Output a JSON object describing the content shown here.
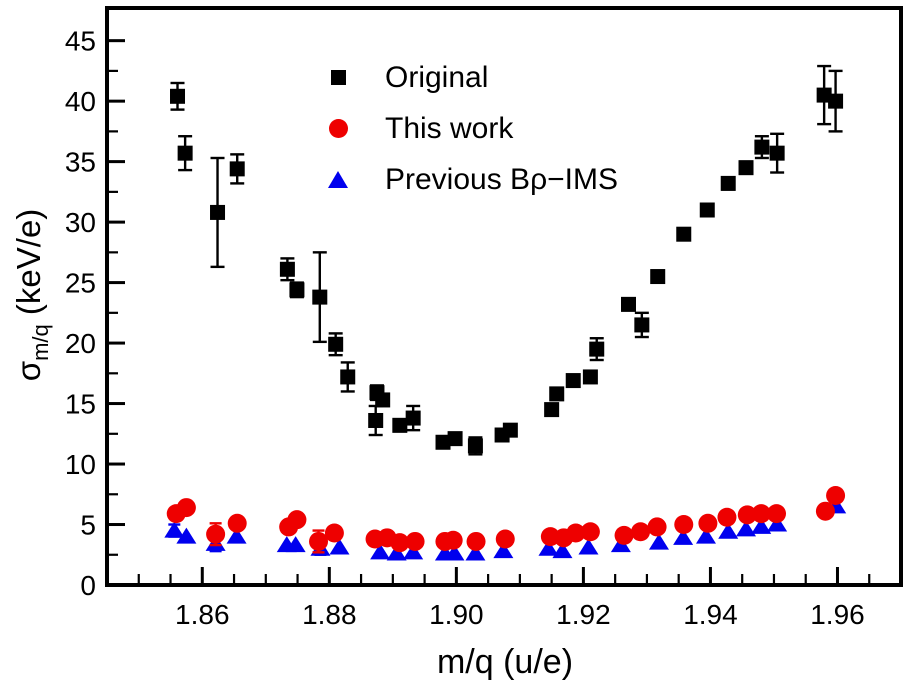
{
  "chart_data": {
    "type": "scatter",
    "title": "",
    "xlabel": "m/q (u/e)",
    "ylabel": "σm/q (keV/e)",
    "ylabel_parts": {
      "symbol": "σ",
      "subscript": "m/q",
      "unit": "(keV/e)"
    },
    "xlim": [
      1.845,
      1.97
    ],
    "ylim": [
      0,
      47.7
    ],
    "x_tick_labels": [
      "1.86",
      "1.88",
      "1.90",
      "1.92",
      "1.94",
      "1.96"
    ],
    "x_major_ticks": [
      1.86,
      1.88,
      1.9,
      1.92,
      1.94,
      1.96
    ],
    "x_minor_step": 0.005,
    "y_tick_labels": [
      "0",
      "5",
      "10",
      "15",
      "20",
      "25",
      "30",
      "35",
      "40",
      "45"
    ],
    "y_major_ticks": [
      0,
      5,
      10,
      15,
      20,
      25,
      30,
      35,
      40,
      45
    ],
    "y_minor_step": 2.5,
    "grid": false,
    "legend_position": "inside-top-center",
    "frame_color": "#000000",
    "series": [
      {
        "name": "Original",
        "marker": "square",
        "color": "#000000",
        "points": [
          [
            1.8561,
            40.4,
            1.1
          ],
          [
            1.8573,
            35.7,
            1.4
          ],
          [
            1.8624,
            30.8,
            4.5
          ],
          [
            1.8655,
            34.4,
            1.2
          ],
          [
            1.8734,
            26.1,
            0.9
          ],
          [
            1.8749,
            24.4,
            0.6
          ],
          [
            1.8785,
            23.8,
            3.7
          ],
          [
            1.881,
            19.9,
            0.9
          ],
          [
            1.8829,
            17.2,
            1.2
          ],
          [
            1.8873,
            13.6,
            1.2
          ],
          [
            1.8875,
            15.9,
            0.6
          ],
          [
            1.8884,
            15.3,
            0.5
          ],
          [
            1.8911,
            13.2,
            0.5
          ],
          [
            1.8932,
            13.8,
            1.0
          ],
          [
            1.8979,
            11.8,
            0.4
          ],
          [
            1.8998,
            12.1,
            0.4
          ],
          [
            1.903,
            11.5,
            0.7
          ],
          [
            1.9072,
            12.4,
            0.4
          ],
          [
            1.9085,
            12.8,
            0.4
          ],
          [
            1.915,
            14.5,
            0.4
          ],
          [
            1.9158,
            15.8,
            0.4
          ],
          [
            1.9184,
            16.9,
            0.4
          ],
          [
            1.9211,
            17.2,
            0.4
          ],
          [
            1.9221,
            19.5,
            0.9
          ],
          [
            1.9271,
            23.2,
            0.5
          ],
          [
            1.9292,
            21.5,
            1.0
          ],
          [
            1.9317,
            25.5,
            0.4
          ],
          [
            1.9358,
            29.0,
            0.4
          ],
          [
            1.9395,
            31.0,
            0.5
          ],
          [
            1.9428,
            33.2,
            0.5
          ],
          [
            1.9456,
            34.5,
            0.5
          ],
          [
            1.9481,
            36.2,
            0.9
          ],
          [
            1.9505,
            35.7,
            1.6
          ],
          [
            1.9579,
            40.5,
            2.4
          ],
          [
            1.9597,
            40.0,
            2.5
          ]
        ]
      },
      {
        "name": "This work",
        "marker": "circle",
        "color": "#ee0000",
        "points": [
          [
            1.8559,
            5.9,
            0
          ],
          [
            1.8575,
            6.4,
            0
          ],
          [
            1.8621,
            4.2,
            0.9
          ],
          [
            1.8655,
            5.1,
            0
          ],
          [
            1.8736,
            4.8,
            0
          ],
          [
            1.8749,
            5.4,
            0
          ],
          [
            1.8783,
            3.6,
            0.9
          ],
          [
            1.8808,
            4.3,
            0
          ],
          [
            1.8872,
            3.8,
            0
          ],
          [
            1.8891,
            3.9,
            0
          ],
          [
            1.8911,
            3.5,
            0
          ],
          [
            1.8935,
            3.6,
            0
          ],
          [
            1.8982,
            3.6,
            0
          ],
          [
            1.8995,
            3.7,
            0
          ],
          [
            1.9031,
            3.6,
            0
          ],
          [
            1.9077,
            3.8,
            0
          ],
          [
            1.9148,
            4.0,
            0
          ],
          [
            1.9169,
            3.9,
            0
          ],
          [
            1.9188,
            4.3,
            0
          ],
          [
            1.9211,
            4.4,
            0
          ],
          [
            1.9264,
            4.1,
            0
          ],
          [
            1.929,
            4.4,
            0
          ],
          [
            1.9316,
            4.8,
            0
          ],
          [
            1.9358,
            5.0,
            0
          ],
          [
            1.9396,
            5.1,
            0
          ],
          [
            1.9426,
            5.6,
            0
          ],
          [
            1.9458,
            5.8,
            0
          ],
          [
            1.948,
            5.9,
            0
          ],
          [
            1.9504,
            5.9,
            0
          ],
          [
            1.9581,
            6.1,
            0
          ],
          [
            1.9597,
            7.4,
            0
          ]
        ]
      },
      {
        "name": "Previous Bρ−IMS",
        "marker": "triangle",
        "color": "#0000ee",
        "points": [
          [
            1.8556,
            4.5,
            0.5
          ],
          [
            1.8575,
            4.0,
            0
          ],
          [
            1.8621,
            3.4,
            0.6
          ],
          [
            1.8654,
            4.0,
            0
          ],
          [
            1.8733,
            3.3,
            0
          ],
          [
            1.8747,
            3.3,
            0
          ],
          [
            1.8786,
            3.0,
            0.5
          ],
          [
            1.8816,
            3.1,
            0
          ],
          [
            1.888,
            2.7,
            0
          ],
          [
            1.8906,
            2.6,
            0
          ],
          [
            1.8932,
            2.7,
            0
          ],
          [
            1.8982,
            2.6,
            0
          ],
          [
            1.8997,
            2.6,
            0
          ],
          [
            1.903,
            2.6,
            0
          ],
          [
            1.9074,
            2.8,
            0
          ],
          [
            1.9145,
            3.0,
            0
          ],
          [
            1.9167,
            2.8,
            0
          ],
          [
            1.9208,
            3.1,
            0
          ],
          [
            1.9259,
            3.3,
            0
          ],
          [
            1.9319,
            3.5,
            0
          ],
          [
            1.9357,
            3.9,
            0
          ],
          [
            1.9393,
            4.0,
            0
          ],
          [
            1.9428,
            4.4,
            0
          ],
          [
            1.9456,
            4.6,
            0
          ],
          [
            1.948,
            4.8,
            0
          ],
          [
            1.9505,
            5.0,
            0
          ],
          [
            1.9598,
            6.5,
            0
          ]
        ]
      }
    ]
  }
}
